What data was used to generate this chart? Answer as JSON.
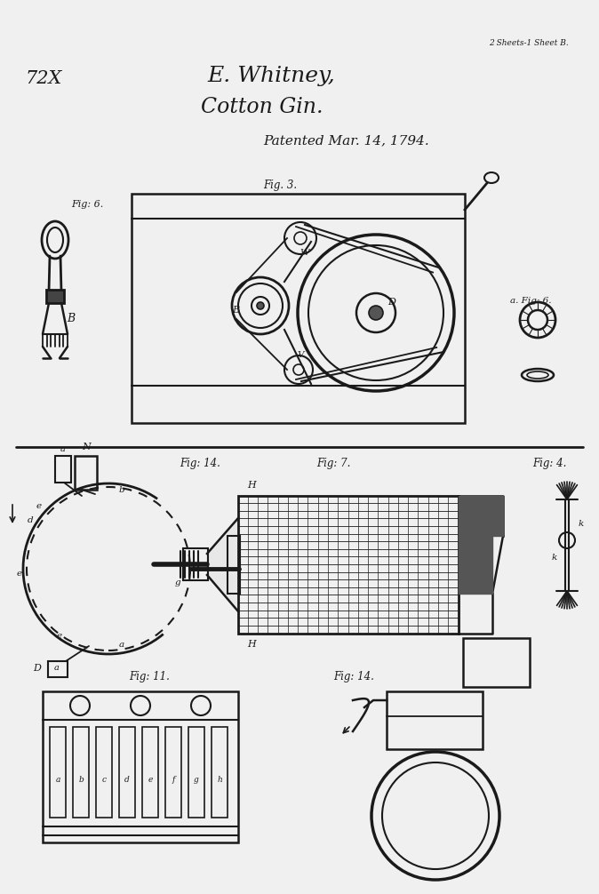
{
  "bg_color": "#e8e8e8",
  "line_color": "#1a1a1a",
  "title1": "E. Whitney,",
  "title2": "Cotton Gin.",
  "title3": "Patented Mar. 14, 1794.",
  "top_right": "2 Sheets-1 Sheet B.",
  "top_left": "72X"
}
